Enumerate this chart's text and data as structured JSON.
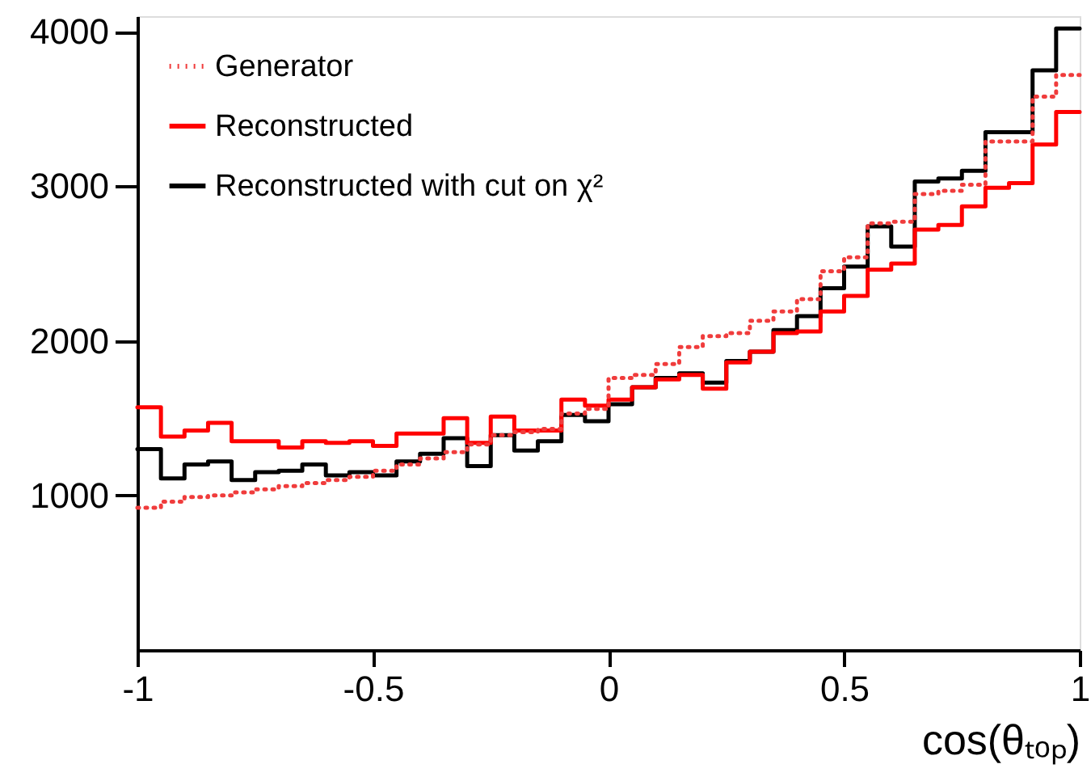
{
  "chart_data": {
    "type": "histogram",
    "xlabel": "cos(θₜₒₚ)",
    "bins": [
      -1,
      -0.95,
      -0.9,
      -0.85,
      -0.8,
      -0.75,
      -0.7,
      -0.65,
      -0.6,
      -0.55,
      -0.5,
      -0.45,
      -0.4,
      -0.35,
      -0.3,
      -0.25,
      -0.2,
      -0.15,
      -0.1,
      -0.05,
      0,
      0.05,
      0.1,
      0.15,
      0.2,
      0.25,
      0.3,
      0.35,
      0.4,
      0.45,
      0.5,
      0.55,
      0.6,
      0.65,
      0.7,
      0.75,
      0.8,
      0.85,
      0.9,
      0.95,
      1
    ],
    "series": [
      {
        "name": "Generator",
        "color": "#f03c3c",
        "line_style": "dotted",
        "values": [
          920,
          960,
          990,
          1000,
          1020,
          1040,
          1060,
          1080,
          1100,
          1120,
          1160,
          1200,
          1240,
          1280,
          1330,
          1390,
          1410,
          1430,
          1530,
          1560,
          1760,
          1780,
          1850,
          1960,
          2030,
          2050,
          2130,
          2190,
          2270,
          2450,
          2540,
          2760,
          2770,
          2950,
          2970,
          3010,
          3290,
          3290,
          3580,
          3720
        ]
      },
      {
        "name": "Reconstructed",
        "color": "#ff0000",
        "line_style": "solid",
        "values": [
          1570,
          1380,
          1420,
          1470,
          1350,
          1350,
          1310,
          1350,
          1340,
          1350,
          1320,
          1400,
          1400,
          1500,
          1340,
          1510,
          1420,
          1420,
          1620,
          1580,
          1620,
          1700,
          1750,
          1780,
          1690,
          1860,
          1930,
          2050,
          2060,
          2190,
          2290,
          2460,
          2500,
          2720,
          2750,
          2870,
          2990,
          3020,
          3270,
          3480
        ]
      },
      {
        "name": "Reconstructed with cut on χ²",
        "color": "#000000",
        "line_style": "solid",
        "values": [
          1300,
          1110,
          1200,
          1220,
          1100,
          1150,
          1160,
          1200,
          1130,
          1150,
          1130,
          1220,
          1270,
          1370,
          1190,
          1390,
          1290,
          1350,
          1520,
          1480,
          1590,
          1700,
          1760,
          1790,
          1730,
          1870,
          1930,
          2070,
          2160,
          2340,
          2480,
          2740,
          2610,
          3030,
          3050,
          3100,
          3350,
          3350,
          3750,
          4020
        ]
      }
    ],
    "xlim": [
      -1,
      1
    ],
    "xticks": [
      -1,
      -0.5,
      0,
      0.5,
      1
    ],
    "ylim": [
      0,
      4100
    ],
    "yticks": [
      1000,
      2000,
      3000,
      4000
    ],
    "grid": false,
    "legend": "top left"
  }
}
